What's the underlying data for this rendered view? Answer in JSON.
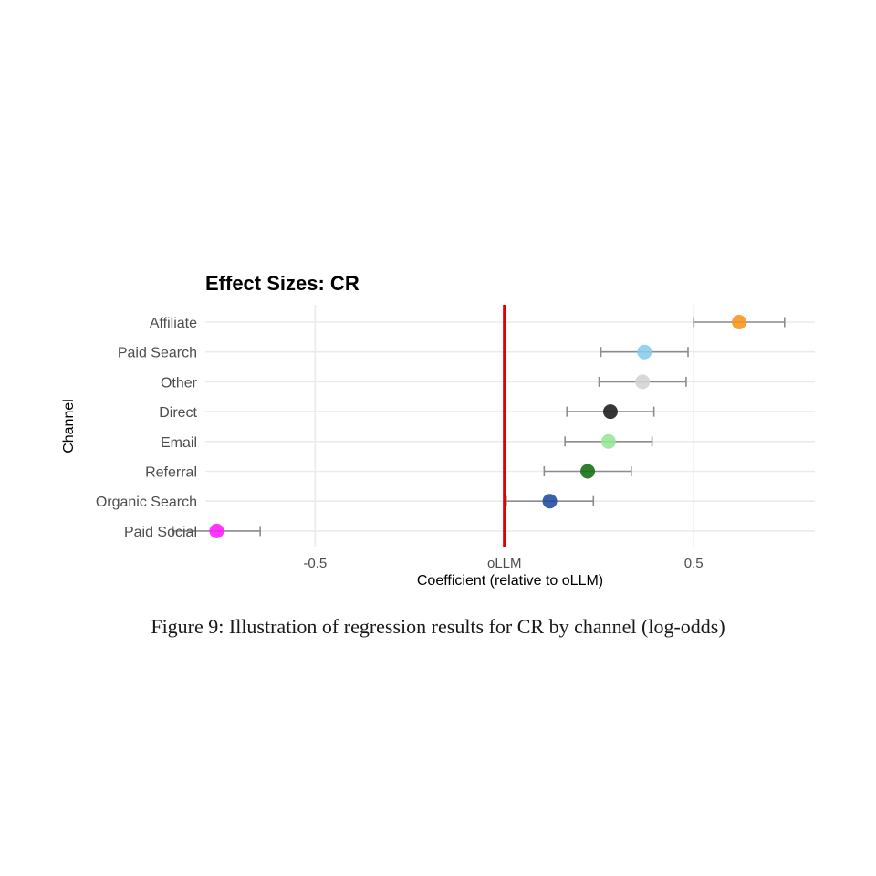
{
  "caption": "Figure 9: Illustration of regression results for CR by channel (log-odds)",
  "chart_data": {
    "type": "scatter",
    "title": "Effect Sizes: CR",
    "xlabel": "Coefficient (relative to oLLM)",
    "ylabel": "Channel",
    "xlim": [
      -0.79,
      0.82
    ],
    "x_ticks": [
      {
        "value": -0.5,
        "label": "-0.5"
      },
      {
        "value": 0,
        "label": "oLLM"
      },
      {
        "value": 0.5,
        "label": "0.5"
      }
    ],
    "reference_line": {
      "value": 0,
      "color": "#e00000"
    },
    "grid": true,
    "legend": "none",
    "points": [
      {
        "channel": "Affiliate",
        "estimate": 0.62,
        "ci_low": 0.5,
        "ci_high": 0.74,
        "color": "#f7941d"
      },
      {
        "channel": "Paid Search",
        "estimate": 0.37,
        "ci_low": 0.255,
        "ci_high": 0.485,
        "color": "#87cbeb"
      },
      {
        "channel": "Other",
        "estimate": 0.365,
        "ci_low": 0.25,
        "ci_high": 0.48,
        "color": "#d3d3d3"
      },
      {
        "channel": "Direct",
        "estimate": 0.28,
        "ci_low": 0.165,
        "ci_high": 0.395,
        "color": "#1a1a1a"
      },
      {
        "channel": "Email",
        "estimate": 0.275,
        "ci_low": 0.16,
        "ci_high": 0.39,
        "color": "#96e696"
      },
      {
        "channel": "Referral",
        "estimate": 0.22,
        "ci_low": 0.105,
        "ci_high": 0.335,
        "color": "#136d13"
      },
      {
        "channel": "Organic Search",
        "estimate": 0.12,
        "ci_low": 0.005,
        "ci_high": 0.235,
        "color": "#1f4aa0"
      },
      {
        "channel": "Paid Social",
        "estimate": -0.76,
        "ci_low": -0.875,
        "ci_high": -0.645,
        "color": "#ff1aff"
      }
    ]
  }
}
